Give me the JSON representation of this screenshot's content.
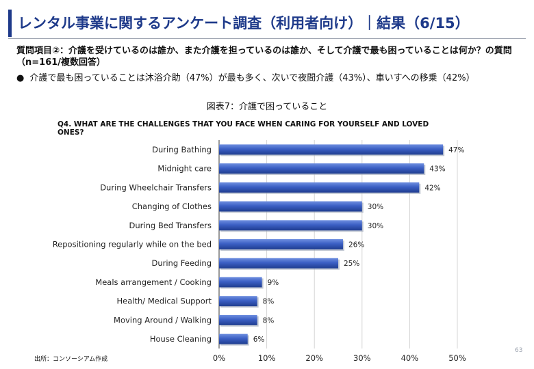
{
  "header": {
    "title": "レンタル事業に関するアンケート調査（利用者向け）｜結果（6/15）"
  },
  "question": {
    "text": "質問項目②：介護を受けているのは誰か、また介護を担っているのは誰か、そして介護で最も困っていることは何か？の質問（n=161/複数回答）"
  },
  "bullet": {
    "dot": "●",
    "text": "介護で最も困っていることは沐浴介助（47%）が最も多く、次いで夜間介護（43%）、車いすへの移乗（42%）"
  },
  "figure": {
    "caption": "図表7：介護で困っていること"
  },
  "chart_data": {
    "type": "bar",
    "orientation": "horizontal",
    "title": "Q4. WHAT ARE THE CHALLENGES THAT YOU FACE WHEN CARING FOR YOURSELF AND LOVED ONES?",
    "categories": [
      "During Bathing",
      "Midnight care",
      "During Wheelchair Transfers",
      "Changing of Clothes",
      "During Bed Transfers",
      "Repositioning regularly while on the bed",
      "During Feeding",
      "Meals arrangement / Cooking",
      "Health/ Medical Support",
      "Moving Around / Walking",
      "House Cleaning"
    ],
    "values": [
      47,
      43,
      42,
      30,
      30,
      26,
      25,
      9,
      8,
      8,
      6
    ],
    "value_suffix": "%",
    "xlim": [
      0,
      50
    ],
    "xticks": [
      "0%",
      "10%",
      "20%",
      "30%",
      "40%",
      "50%"
    ],
    "grid": true,
    "legend": "none",
    "bar_color": "#3b5fc4"
  },
  "footer": {
    "source": "出所：コンソーシアム作成",
    "page": "63"
  }
}
